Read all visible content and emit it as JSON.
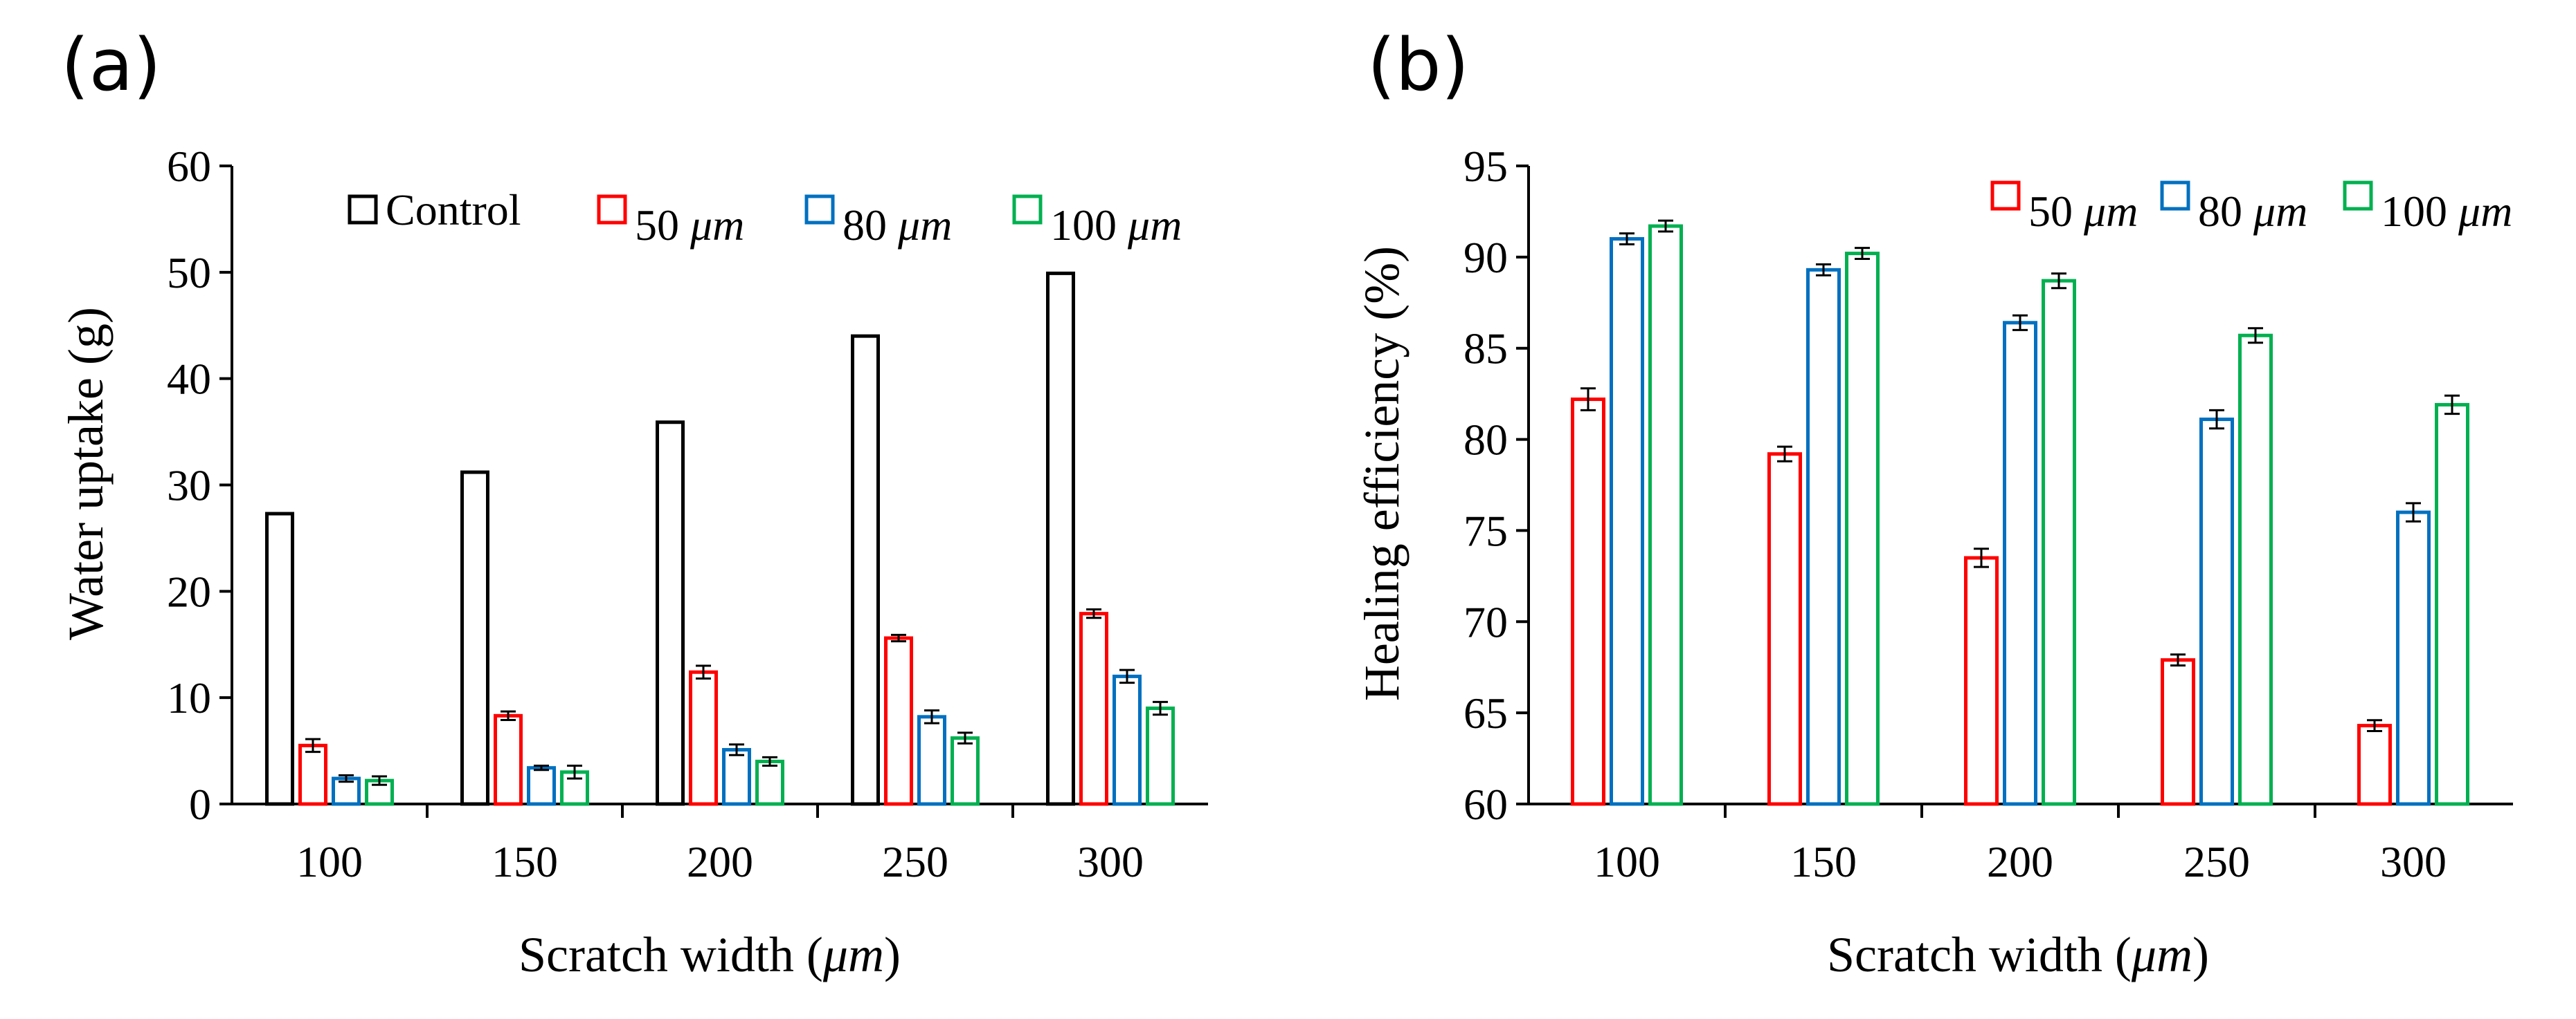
{
  "chart_data": [
    {
      "panel_label": "(a)",
      "type": "bar",
      "ylabel": "Water uptake (g)",
      "xlabel_prefix": "Scratch width (",
      "xlabel_unit": "μm",
      "xlabel_suffix": ")",
      "ylim": [
        0,
        60
      ],
      "yticks": [
        0,
        10,
        20,
        30,
        40,
        50,
        60
      ],
      "grid": false,
      "legend_position": "top",
      "categories": [
        "100",
        "150",
        "200",
        "250",
        "300"
      ],
      "series": [
        {
          "name": "Control",
          "color": "#000000",
          "values": [
            27.3,
            31.2,
            35.9,
            44.0,
            49.9
          ],
          "errors": [
            0,
            0,
            0,
            0,
            0
          ]
        },
        {
          "name": "50 μm",
          "color": "#ff0000",
          "values": [
            5.5,
            8.3,
            12.4,
            15.6,
            17.9
          ],
          "errors": [
            0.6,
            0.4,
            0.6,
            0.3,
            0.4
          ]
        },
        {
          "name": "80 μm",
          "color": "#0070c0",
          "values": [
            2.4,
            3.4,
            5.1,
            8.2,
            12.0
          ],
          "errors": [
            0.3,
            0.2,
            0.5,
            0.6,
            0.6
          ]
        },
        {
          "name": "100 μm",
          "color": "#00b050",
          "values": [
            2.2,
            3.0,
            4.0,
            6.2,
            9.0
          ],
          "errors": [
            0.4,
            0.6,
            0.4,
            0.5,
            0.6
          ]
        }
      ]
    },
    {
      "panel_label": "(b)",
      "type": "bar",
      "ylabel": "Healing efficiency (%)",
      "xlabel_prefix": "Scratch width (",
      "xlabel_unit": "μm",
      "xlabel_suffix": ")",
      "ylim": [
        60,
        95
      ],
      "yticks": [
        60,
        65,
        70,
        75,
        80,
        85,
        90,
        95
      ],
      "grid": false,
      "legend_position": "top-right",
      "categories": [
        "100",
        "150",
        "200",
        "250",
        "300"
      ],
      "series": [
        {
          "name": "50 μm",
          "color": "#ff0000",
          "values": [
            82.2,
            79.2,
            73.5,
            67.9,
            64.3
          ],
          "errors": [
            0.6,
            0.4,
            0.5,
            0.3,
            0.3
          ]
        },
        {
          "name": "80 μm",
          "color": "#0070c0",
          "values": [
            91.0,
            89.3,
            86.4,
            81.1,
            76.0
          ],
          "errors": [
            0.3,
            0.3,
            0.4,
            0.5,
            0.5
          ]
        },
        {
          "name": "100 μm",
          "color": "#00b050",
          "values": [
            91.7,
            90.2,
            88.7,
            85.7,
            81.9
          ],
          "errors": [
            0.3,
            0.3,
            0.4,
            0.4,
            0.5
          ]
        }
      ]
    }
  ]
}
